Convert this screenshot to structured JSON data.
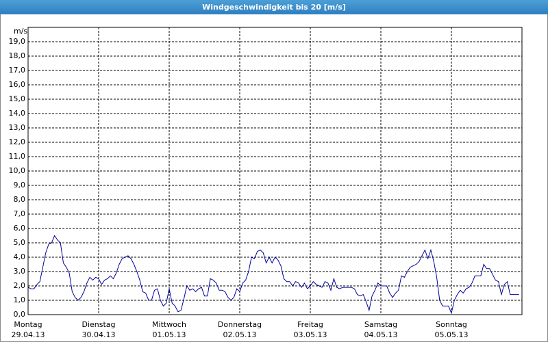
{
  "chart_data": {
    "type": "line",
    "title": "Windgeschwindigkeit bis 20 [m/s]",
    "y_label": "m/s",
    "color": "#00009c",
    "grid": true,
    "ylim": [
      0,
      20
    ],
    "yticks": [
      {
        "value": 0,
        "label": "0,0"
      },
      {
        "value": 1,
        "label": "1,0"
      },
      {
        "value": 2,
        "label": "2,0"
      },
      {
        "value": 3,
        "label": "3,0"
      },
      {
        "value": 4,
        "label": "4,0"
      },
      {
        "value": 5,
        "label": "5,0"
      },
      {
        "value": 6,
        "label": "6,0"
      },
      {
        "value": 7,
        "label": "7,0"
      },
      {
        "value": 8,
        "label": "8,0"
      },
      {
        "value": 9,
        "label": "9,0"
      },
      {
        "value": 10,
        "label": "10,0"
      },
      {
        "value": 11,
        "label": "11,0"
      },
      {
        "value": 12,
        "label": "12,0"
      },
      {
        "value": 13,
        "label": "13,0"
      },
      {
        "value": 14,
        "label": "14,0"
      },
      {
        "value": 15,
        "label": "15,0"
      },
      {
        "value": 16,
        "label": "16,0"
      },
      {
        "value": 17,
        "label": "17,0"
      },
      {
        "value": 18,
        "label": "18,0"
      },
      {
        "value": 19,
        "label": "19,0"
      }
    ],
    "xlim": [
      0,
      168
    ],
    "xticks": [
      {
        "value": 0,
        "label": "Montag"
      },
      {
        "value": 24,
        "label": "Dienstag"
      },
      {
        "value": 48,
        "label": "Mittwoch"
      },
      {
        "value": 72,
        "label": "Donnerstag"
      },
      {
        "value": 96,
        "label": "Freitag"
      },
      {
        "value": 120,
        "label": "Samstag"
      },
      {
        "value": 144,
        "label": "Sonntag"
      }
    ],
    "xtick_dates": [
      "29.04.13",
      "30.04.13",
      "01.05.13",
      "02.05.13",
      "03.05.13",
      "04.05.13",
      "05.05.13"
    ],
    "x": [
      0,
      1,
      2,
      3,
      4,
      5,
      6,
      7,
      8,
      9,
      10,
      11,
      12,
      13,
      14,
      15,
      16,
      17,
      18,
      19,
      20,
      21,
      22,
      23,
      24,
      25,
      26,
      27,
      28,
      29,
      30,
      31,
      32,
      33,
      34,
      35,
      36,
      37,
      38,
      39,
      40,
      41,
      42,
      43,
      44,
      45,
      46,
      47,
      48,
      49,
      50,
      51,
      52,
      53,
      54,
      55,
      56,
      57,
      58,
      59,
      60,
      61,
      62,
      63,
      64,
      65,
      66,
      67,
      68,
      69,
      70,
      71,
      72,
      73,
      74,
      75,
      76,
      77,
      78,
      79,
      80,
      81,
      82,
      83,
      84,
      85,
      86,
      87,
      88,
      89,
      90,
      91,
      92,
      93,
      94,
      95,
      96,
      97,
      98,
      99,
      100,
      101,
      102,
      103,
      104,
      105,
      106,
      107,
      108,
      109,
      110,
      111,
      112,
      113,
      114,
      115,
      116,
      117,
      118,
      119,
      120,
      121,
      122,
      123,
      124,
      125,
      126,
      127,
      128,
      129,
      130,
      131,
      132,
      133,
      134,
      135,
      136,
      137,
      138,
      139,
      140,
      141,
      142,
      143,
      144,
      145,
      146,
      147,
      148,
      149,
      150,
      151,
      152,
      153,
      154,
      155,
      156,
      157,
      158,
      159,
      160,
      161,
      162,
      163,
      164,
      165,
      166,
      167
    ],
    "values": [
      1.9,
      1.8,
      1.8,
      2.1,
      2.3,
      3.3,
      4.3,
      4.9,
      5.0,
      5.5,
      5.2,
      5.0,
      3.6,
      3.3,
      2.9,
      1.6,
      1.2,
      1.0,
      1.2,
      1.6,
      2.2,
      2.6,
      2.4,
      2.6,
      2.5,
      2.1,
      2.4,
      2.5,
      2.7,
      2.5,
      2.9,
      3.5,
      3.9,
      4.0,
      4.1,
      3.9,
      3.5,
      3.0,
      2.4,
      1.6,
      1.5,
      1.0,
      1.0,
      1.7,
      1.8,
      1.0,
      0.6,
      0.8,
      1.8,
      0.8,
      0.6,
      0.2,
      0.3,
      1.1,
      2.0,
      1.7,
      1.8,
      1.6,
      1.8,
      1.9,
      1.3,
      1.3,
      2.5,
      2.4,
      2.2,
      1.7,
      1.7,
      1.6,
      1.2,
      1.0,
      1.2,
      1.8,
      1.6,
      2.2,
      2.4,
      3.0,
      4.0,
      3.9,
      4.4,
      4.5,
      4.3,
      3.6,
      4.0,
      3.6,
      4.0,
      3.8,
      3.4,
      2.5,
      2.3,
      2.3,
      2.0,
      2.3,
      2.2,
      1.9,
      2.2,
      1.8,
      2.0,
      2.3,
      2.1,
      2.0,
      1.9,
      2.3,
      2.2,
      1.7,
      2.5,
      1.9,
      1.8,
      1.9,
      1.9,
      1.9,
      1.9,
      1.8,
      1.4,
      1.3,
      1.4,
      0.9,
      0.3,
      1.3,
      1.7,
      2.2,
      2.0,
      2.0,
      2.0,
      1.5,
      1.2,
      1.5,
      1.7,
      2.7,
      2.6,
      3.0,
      3.3,
      3.4,
      3.5,
      3.7,
      4.1,
      4.5,
      3.9,
      4.5,
      3.7,
      2.6,
      1.0,
      0.6,
      0.6,
      0.6,
      0.1,
      1.0,
      1.4,
      1.7,
      1.5,
      1.8,
      1.9,
      2.2,
      2.7,
      2.7,
      2.7,
      3.5,
      3.2,
      3.2,
      2.8,
      2.4,
      2.3,
      1.4,
      2.1,
      2.3,
      1.4,
      1.4,
      1.4,
      1.4
    ]
  }
}
